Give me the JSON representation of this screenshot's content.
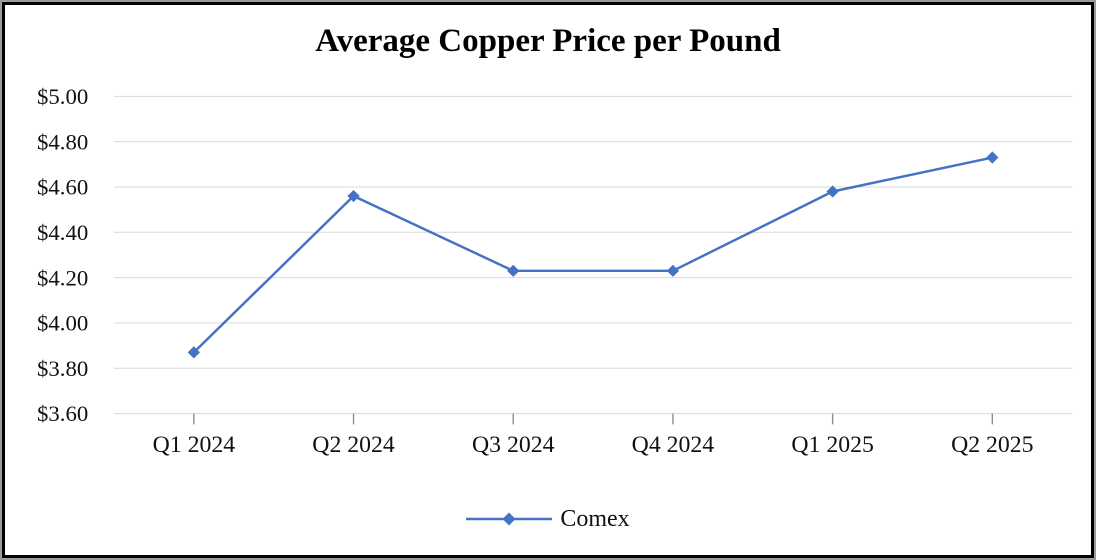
{
  "chart_data": {
    "type": "line",
    "title": "Average Copper Price per Pound",
    "categories": [
      "Q1 2024",
      "Q2 2024",
      "Q3 2024",
      "Q4 2024",
      "Q1 2025",
      "Q2 2025"
    ],
    "series": [
      {
        "name": "Comex",
        "values": [
          3.87,
          4.56,
          4.23,
          4.23,
          4.58,
          4.73
        ],
        "color": "#4472C4",
        "marker": "diamond",
        "line_width": 2.5
      }
    ],
    "xlabel": "",
    "ylabel": "",
    "y_axis": {
      "min": 3.6,
      "max": 5.0,
      "step": 0.2,
      "tick_labels": [
        "$3.60",
        "$3.80",
        "$4.00",
        "$4.20",
        "$4.40",
        "$4.60",
        "$4.80",
        "$5.00"
      ]
    },
    "grid": "horizontal",
    "gridline_color": "#D9D9D9",
    "axis_tick_color": "#8C8C8C",
    "text_color": "#000000",
    "legend": {
      "position": "bottom-center"
    }
  }
}
